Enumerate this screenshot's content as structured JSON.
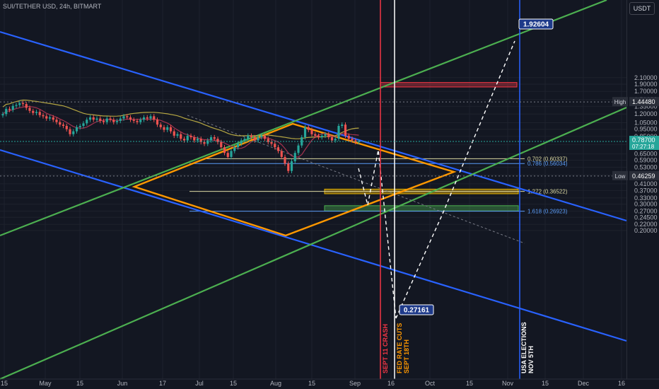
{
  "header": {
    "symbol": "SUI/TETHER USD, 24h, BITMART",
    "currency_button": "USDT"
  },
  "colors": {
    "background": "#131722",
    "grid": "#1e222d",
    "axis_text": "#b2b5be",
    "channel_blue": "#2962ff",
    "channel_green": "#4caf50",
    "diamond_orange": "#ff9800",
    "candle_up": "#26a69a",
    "candle_down": "#ef5350",
    "ma_slow": "#b5a642",
    "ma_fast": "#a3324f",
    "event_red": "#f23645",
    "event_white": "#ffffff"
  },
  "chart_data": {
    "type": "candlestick",
    "y_scale": "log",
    "ylim": [
      0.19,
      2.2
    ],
    "y_ticks": [
      "2.10000",
      "1.90000",
      "1.70000",
      "1.50000",
      "1.35000",
      "1.20000",
      "1.05000",
      "0.95000",
      "0.85000",
      "0.75000",
      "0.65000",
      "0.59000",
      "0.53000",
      "0.47000",
      "0.41000",
      "0.37000",
      "0.33000",
      "0.30000",
      "0.27000",
      "0.24500",
      "0.22000",
      "0.20000"
    ],
    "x_ticks": [
      "15",
      "May",
      "15",
      "Jun",
      "17",
      "Jul",
      "15",
      "Aug",
      "15",
      "Sep",
      "16",
      "Oct",
      "15",
      "Nov",
      "15",
      "Dec",
      "16"
    ],
    "last_price": {
      "value": 0.787,
      "label": "0.78700",
      "countdown": "07:27:18"
    },
    "high": {
      "label": "High",
      "value": "1.44480"
    },
    "low": {
      "label": "Low",
      "value": "0.46259"
    },
    "fib_levels": [
      {
        "label": "0.702 (0.60337)",
        "value": 0.60337,
        "color": "#d9d6a0"
      },
      {
        "label": "0.786 (0.56034)",
        "value": 0.56034,
        "color": "#5b9cf6"
      },
      {
        "label": "1.272 (0.36522)",
        "value": 0.36522,
        "color": "#d9d6a0"
      },
      {
        "label": "1.618 (0.26923)",
        "value": 0.26923,
        "color": "#5b9cf6"
      }
    ],
    "target_labels": [
      {
        "text": "1.92604",
        "value": 1.92604
      },
      {
        "text": "0.27161",
        "value": 0.27161
      }
    ],
    "event_labels": [
      {
        "text": "SEPT 11  CRASH",
        "color": "#f23645"
      },
      {
        "text": "FED RATE CUTS",
        "color": "#ff9800"
      },
      {
        "text": "SEPT 18TH",
        "color": "#ff9800"
      },
      {
        "text": "USA ELECTIONS",
        "color": "#ffffff"
      },
      {
        "text": "NOV 5TH",
        "color": "#ffffff"
      }
    ],
    "zones": [
      {
        "name": "red",
        "top": 1.95,
        "bottom": 1.82
      },
      {
        "name": "yellow",
        "top": 0.378,
        "bottom": 0.352
      },
      {
        "name": "green",
        "top": 0.293,
        "bottom": 0.27
      }
    ],
    "candles_close": [
      1.2,
      1.3,
      1.28,
      1.36,
      1.38,
      1.42,
      1.4,
      1.32,
      1.26,
      1.22,
      1.24,
      1.18,
      1.16,
      1.12,
      1.14,
      1.1,
      1.06,
      1.02,
      1.0,
      0.95,
      0.88,
      0.92,
      0.98,
      1.0,
      1.04,
      1.1,
      1.14,
      1.1,
      1.12,
      1.08,
      1.06,
      1.12,
      1.1,
      1.06,
      1.08,
      1.12,
      1.16,
      1.14,
      1.1,
      1.08,
      1.06,
      1.1,
      1.14,
      1.12,
      1.16,
      1.1,
      1.02,
      0.98,
      0.94,
      0.98,
      0.92,
      0.86,
      0.88,
      0.82,
      0.8,
      0.86,
      0.84,
      0.8,
      0.82,
      0.78,
      0.76,
      0.8,
      0.84,
      0.82,
      0.78,
      0.72,
      0.66,
      0.62,
      0.68,
      0.72,
      0.76,
      0.8,
      0.82,
      0.86,
      0.84,
      0.8,
      0.84,
      0.86,
      0.82,
      0.78,
      0.76,
      0.72,
      0.68,
      0.62,
      0.56,
      0.5,
      0.58,
      0.66,
      0.74,
      0.84,
      0.98,
      0.94,
      0.88,
      0.86,
      0.84,
      0.86,
      0.88,
      0.84,
      0.8,
      0.82,
      1.0,
      1.02,
      0.86,
      0.82,
      0.8,
      0.78,
      0.787
    ]
  }
}
